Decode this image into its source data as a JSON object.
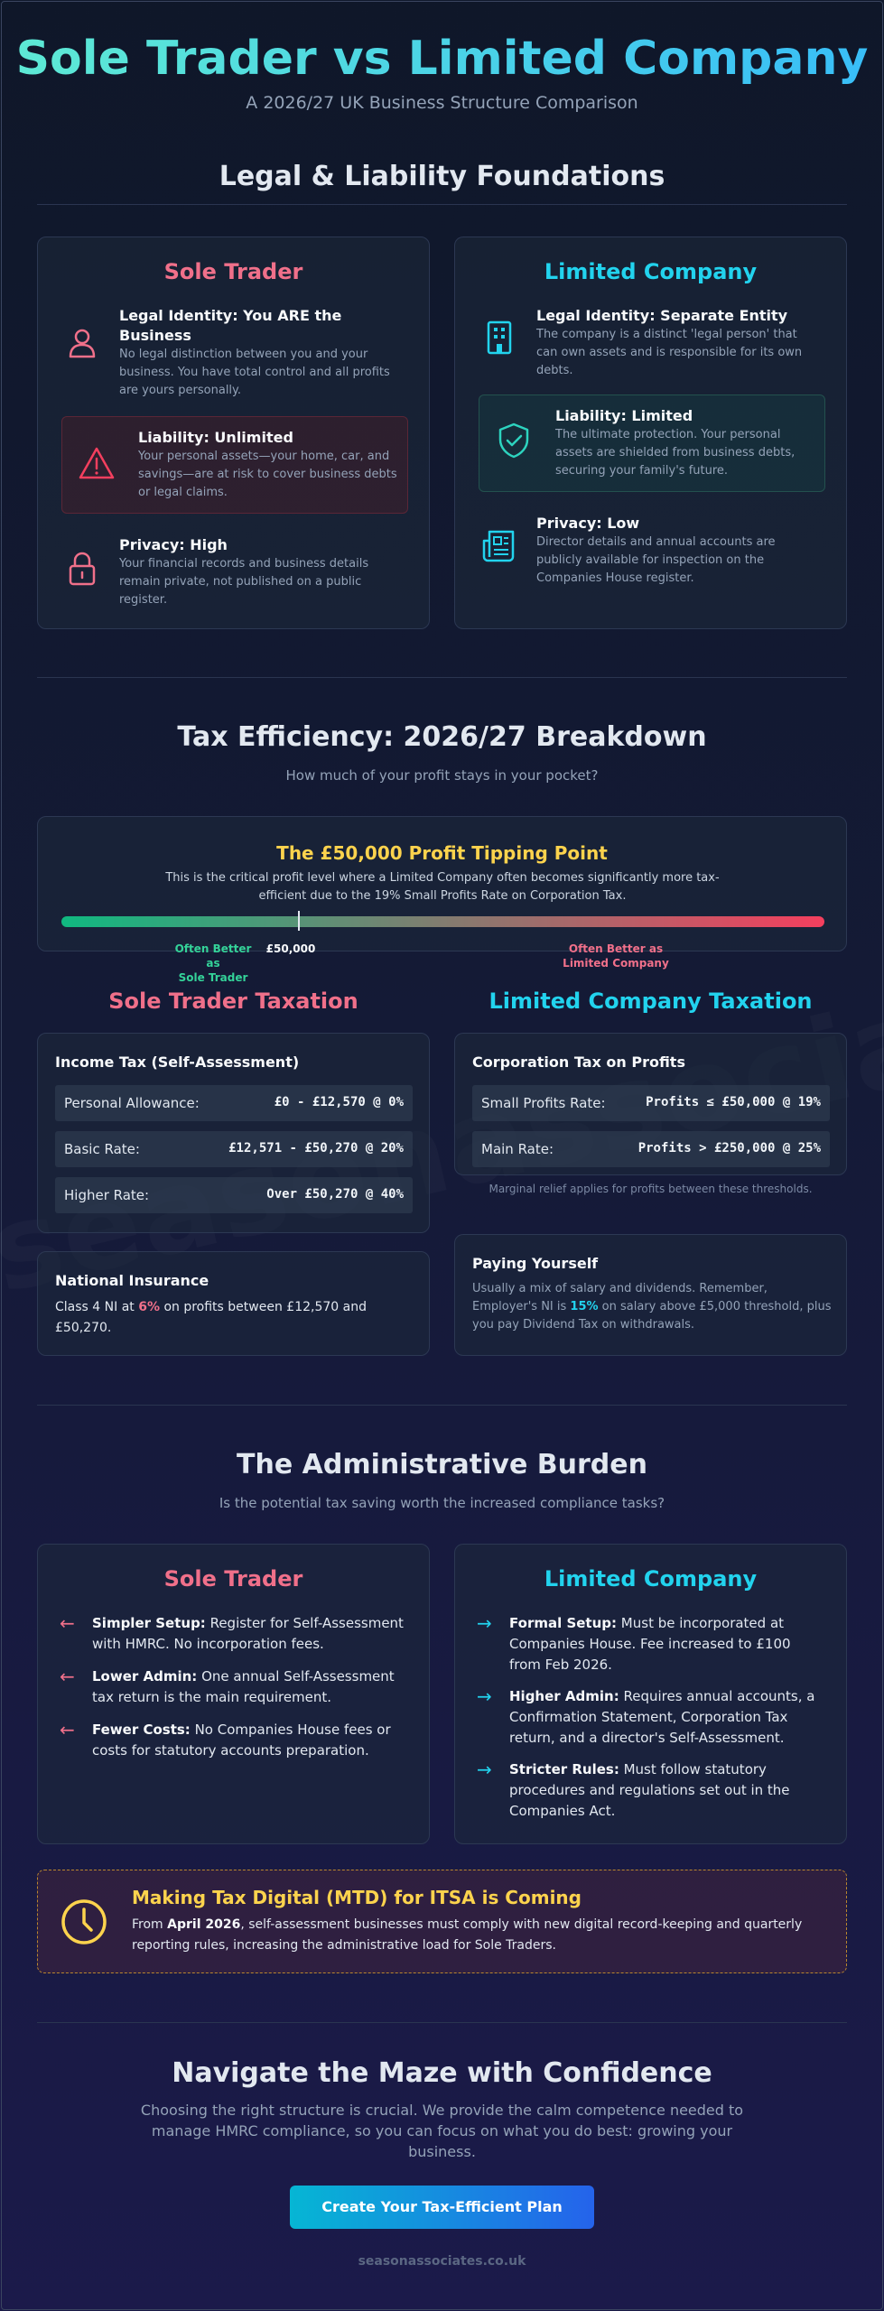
{
  "header": {
    "title": "Sole Trader vs Limited Company",
    "subtitle": "A 2026/27 UK Business Structure Comparison"
  },
  "legal": {
    "title": "Legal & Liability Foundations",
    "sole": {
      "title": "Sole Trader",
      "identity_h": "Legal Identity: You ARE the Business",
      "identity_p": "No legal distinction between you and your business. You have total control and all profits are yours personally.",
      "liability_h": "Liability: Unlimited",
      "liability_p": "Your personal assets—your home, car, and savings—are at risk to cover business debts or legal claims.",
      "privacy_h": "Privacy: High",
      "privacy_p": "Your financial records and business details remain private, not published on a public register."
    },
    "ltd": {
      "title": "Limited Company",
      "identity_h": "Legal Identity: Separate Entity",
      "identity_p": "The company is a distinct 'legal person' that can own assets and is responsible for its own debts.",
      "liability_h": "Liability: Limited",
      "liability_p": "The ultimate protection. Your personal assets are shielded from business debts, securing your family's future.",
      "privacy_h": "Privacy: Low",
      "privacy_p": "Director details and annual accounts are publicly available for inspection on the Companies House register."
    }
  },
  "tax": {
    "title": "Tax Efficiency: 2026/27 Breakdown",
    "subtitle": "How much of your profit stays in your pocket?",
    "tipping": {
      "title": "The £50,000 Profit Tipping Point",
      "desc": "This is the critical profit level where a Limited Company often becomes significantly more tax-efficient due to the 19% Small Profits Rate on Corporation Tax.",
      "left_label_1": "Often Better as",
      "left_label_2": "Sole Trader",
      "marker_label": "£50,000",
      "right_label_1": "Often Better as",
      "right_label_2": "Limited Company",
      "marker_fraction": 0.31
    },
    "sole_title": "Sole Trader Taxation",
    "ltd_title": "Limited Company Taxation",
    "income": {
      "head": "Income Tax (Self-Assessment)",
      "rows": [
        {
          "label": "Personal Allowance:",
          "value": "£0 - £12,570 @ 0%"
        },
        {
          "label": "Basic Rate:",
          "value": "£12,571 - £50,270 @ 20%"
        },
        {
          "label": "Higher Rate:",
          "value": "Over £50,270 @ 40%"
        }
      ]
    },
    "ni": {
      "head": "National Insurance",
      "pre": "Class 4 NI at ",
      "rate": "6%",
      "post": " on profits between £12,570 and £50,270."
    },
    "corp": {
      "head": "Corporation Tax on Profits",
      "rows": [
        {
          "label": "Small Profits Rate:",
          "value": "Profits ≤ £50,000 @ 19%"
        },
        {
          "label": "Main Rate:",
          "value": "Profits > £250,000 @ 25%"
        }
      ],
      "note": "Marginal relief applies for profits between these thresholds."
    },
    "pay": {
      "head": "Paying Yourself",
      "pre": "Usually a mix of salary and dividends. Remember, Employer's NI is ",
      "rate": "15%",
      "post": " on salary above £5,000 threshold, plus you pay Dividend Tax on withdrawals."
    }
  },
  "admin": {
    "title": "The Administrative Burden",
    "subtitle": "Is the potential tax saving worth the increased compliance tasks?",
    "sole": {
      "title": "Sole Trader",
      "items": [
        {
          "b": "Simpler Setup:",
          "t": " Register for Self-Assessment with HMRC. No incorporation fees."
        },
        {
          "b": "Lower Admin:",
          "t": " One annual Self-Assessment tax return is the main requirement."
        },
        {
          "b": "Fewer Costs:",
          "t": " No Companies House fees or costs for statutory accounts preparation."
        }
      ]
    },
    "ltd": {
      "title": "Limited Company",
      "items": [
        {
          "b": "Formal Setup:",
          "t": " Must be incorporated at Companies House. Fee increased to £100 from Feb 2026."
        },
        {
          "b": "Higher Admin:",
          "t": " Requires annual accounts, a Confirmation Statement, Corporation Tax return, and a director's Self-Assessment."
        },
        {
          "b": "Stricter Rules:",
          "t": " Must follow statutory procedures and regulations set out in the Companies Act."
        }
      ]
    },
    "mtd": {
      "title": "Making Tax Digital (MTD) for ITSA is Coming",
      "pre": "From ",
      "date": "April 2026",
      "post": ", self-assessment businesses must comply with new digital record-keeping and quarterly reporting rules, increasing the administrative load for Sole Traders."
    }
  },
  "cta": {
    "title": "Navigate the Maze with Confidence",
    "text": "Choosing the right structure is crucial. We provide the calm competence needed to manage HMRC compliance, so you can focus on what you do best: growing your business.",
    "button": "Create Your Tax-Efficient Plan",
    "footer": "seasonassociates.co.uk"
  },
  "watermark": "seasonassociates.co.uk",
  "colors": {
    "sole_accent": "#f0708a",
    "ltd_accent": "#22d3ee",
    "highlight": "#fcd34d"
  },
  "icons": {
    "identity_sole": "user-icon",
    "liability_sole": "warning-icon",
    "privacy_sole": "lock-icon",
    "identity_ltd": "building-icon",
    "liability_ltd": "shield-check-icon",
    "privacy_ltd": "newspaper-icon",
    "mtd": "clock-icon"
  }
}
